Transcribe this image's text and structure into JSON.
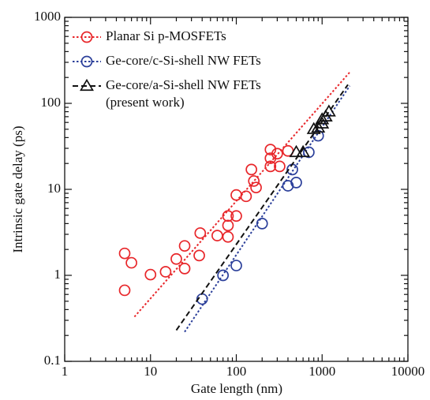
{
  "chart_data": {
    "type": "scatter",
    "x_label": "Gate length (nm)",
    "y_label": "Intrinsic gate delay (ps)",
    "x_log": true,
    "y_log": true,
    "xlim": [
      1,
      10000
    ],
    "ylim": [
      0.1,
      1000
    ],
    "xticks": [
      1,
      10,
      100,
      1000,
      10000
    ],
    "yticks": [
      0.1,
      1,
      10,
      100,
      1000
    ],
    "legend": "upper left",
    "series": [
      {
        "name": "Planar Si p-MOSFETs",
        "color": "#e8262a",
        "marker": "circle",
        "linestyle": "dotted",
        "x": [
          5,
          5,
          6,
          10,
          15,
          20,
          25,
          25,
          38,
          37,
          60,
          80,
          80,
          80,
          100,
          100,
          130,
          150,
          160,
          170,
          250,
          250,
          250,
          300,
          320,
          400
        ],
        "values": [
          1.8,
          0.67,
          1.4,
          1.02,
          1.1,
          1.55,
          2.2,
          1.2,
          3.1,
          1.7,
          2.9,
          4.9,
          3.8,
          2.8,
          4.9,
          8.6,
          8.3,
          17,
          12.5,
          10.5,
          29,
          23,
          18.5,
          26,
          18.5,
          28
        ],
        "fit": {
          "x": [
            6.5,
            2100
          ],
          "values": [
            0.33,
            230
          ]
        }
      },
      {
        "name": "Ge-core/c-Si-shell NW FETs",
        "color": "#2b3f9a",
        "marker": "circle",
        "linestyle": "dotted",
        "x": [
          40,
          70,
          100,
          200,
          400,
          450,
          500,
          700,
          900
        ],
        "values": [
          0.53,
          1.0,
          1.3,
          4.0,
          11,
          17,
          12,
          27,
          42
        ],
        "fit": {
          "x": [
            25,
            2100
          ],
          "values": [
            0.22,
            160
          ]
        }
      },
      {
        "name": "Ge-core/a-Si-shell NW FETs",
        "name_note": "(present work)",
        "color": "#111111",
        "marker": "triangle",
        "linestyle": "dashed",
        "x": [
          500,
          600,
          800,
          900,
          1000,
          1000,
          1100,
          1200
        ],
        "values": [
          27,
          27,
          50,
          52,
          58,
          65,
          70,
          80
        ],
        "fit": {
          "x": [
            20,
            2000
          ],
          "values": [
            0.23,
            165
          ]
        }
      }
    ]
  }
}
